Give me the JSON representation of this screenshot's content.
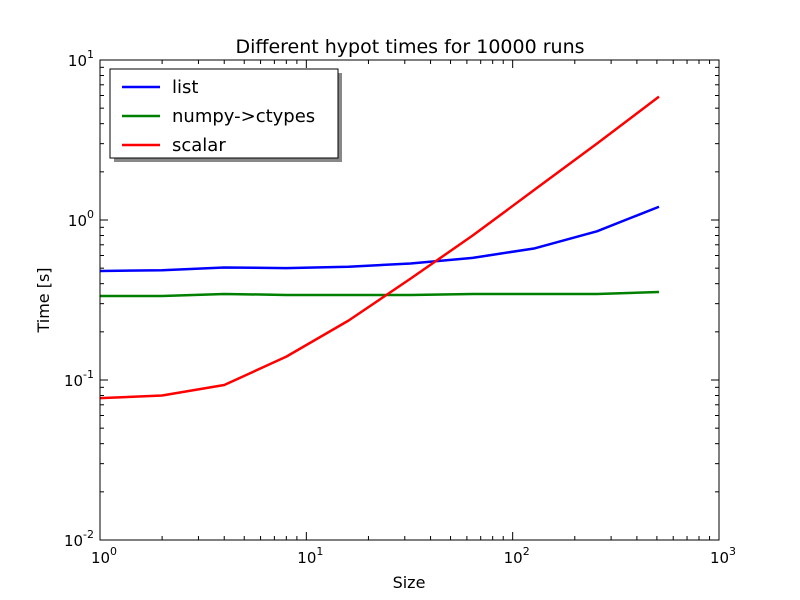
{
  "chart_data": {
    "type": "line",
    "title": "Different hypot times for 10000 runs",
    "xlabel": "Size",
    "ylabel": "Time [s]",
    "xscale": "log",
    "yscale": "log",
    "xlim": [
      1,
      1000
    ],
    "ylim": [
      0.01,
      10
    ],
    "grid": false,
    "legend_position": "top-left",
    "x_ticks": [
      {
        "base": "10",
        "exp": "0",
        "value": 1
      },
      {
        "base": "10",
        "exp": "1",
        "value": 10
      },
      {
        "base": "10",
        "exp": "2",
        "value": 100
      },
      {
        "base": "10",
        "exp": "3",
        "value": 1000
      }
    ],
    "y_ticks": [
      {
        "base": "10",
        "exp": "-2",
        "value": 0.01
      },
      {
        "base": "10",
        "exp": "-1",
        "value": 0.1
      },
      {
        "base": "10",
        "exp": "0",
        "value": 1
      },
      {
        "base": "10",
        "exp": "1",
        "value": 10
      }
    ],
    "x": [
      1,
      2,
      4,
      8,
      16,
      32,
      64,
      128,
      256,
      512
    ],
    "series": [
      {
        "name": "list",
        "color": "#0000ff",
        "values": [
          0.48,
          0.485,
          0.505,
          0.5,
          0.51,
          0.535,
          0.58,
          0.665,
          0.85,
          1.21
        ]
      },
      {
        "name": "numpy->ctypes",
        "color": "#008000",
        "values": [
          0.335,
          0.335,
          0.345,
          0.34,
          0.34,
          0.34,
          0.345,
          0.345,
          0.345,
          0.355
        ]
      },
      {
        "name": "scalar",
        "color": "#ff0000",
        "values": [
          0.077,
          0.08,
          0.093,
          0.14,
          0.235,
          0.43,
          0.8,
          1.55,
          3.0,
          5.9
        ]
      }
    ]
  }
}
